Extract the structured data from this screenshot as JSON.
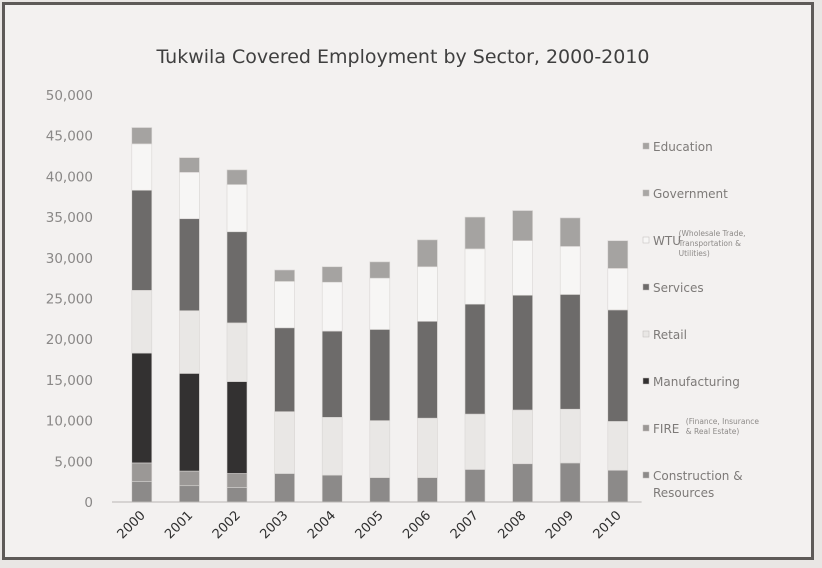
{
  "chart_data": {
    "type": "bar",
    "stacked": true,
    "title": "Tukwila Covered Employment by Sector, 2000-2010",
    "xlabel": "",
    "ylabel": "",
    "ylim": [
      0,
      50000
    ],
    "y_ticks": [
      "0",
      "5,000",
      "10,000",
      "15,000",
      "20,000",
      "25,000",
      "30,000",
      "35,000",
      "40,000",
      "45,000",
      "50,000"
    ],
    "categories": [
      "2000",
      "2001",
      "2002",
      "2003",
      "2004",
      "2005",
      "2006",
      "2007",
      "2008",
      "2009",
      "2010"
    ],
    "grid": false,
    "legend_position": "right",
    "series": [
      {
        "name": "Construction & Resources",
        "color": "#8c8a89",
        "values": [
          2500,
          2000,
          1800,
          3500,
          3300,
          3000,
          3000,
          4000,
          4700,
          4800,
          3900
        ]
      },
      {
        "name": "FIRE",
        "sublabel": "(Finance, Insurance & Real Estate)",
        "color": "#9b9896",
        "values": [
          2300,
          1800,
          1700,
          0,
          0,
          0,
          0,
          0,
          0,
          0,
          0
        ]
      },
      {
        "name": "Manufacturing",
        "color": "#333131",
        "values": [
          13500,
          12000,
          11300,
          0,
          0,
          0,
          0,
          0,
          0,
          0,
          0
        ]
      },
      {
        "name": "Retail",
        "color": "#e9e7e5",
        "values": [
          7700,
          7700,
          7200,
          7600,
          7100,
          7000,
          7300,
          6800,
          6600,
          6600,
          6000
        ]
      },
      {
        "name": "Services",
        "color": "#6d6b6a",
        "values": [
          12300,
          11300,
          11200,
          10300,
          10600,
          11200,
          11900,
          13500,
          14100,
          14100,
          13700
        ]
      },
      {
        "name": "WTU",
        "sublabel": "(Wholesale Trade, Transportation & Utilities)",
        "color": "#f7f6f5",
        "values": [
          5700,
          5700,
          5800,
          5700,
          6000,
          6300,
          6700,
          6800,
          6700,
          5900,
          5100
        ]
      },
      {
        "name": "Government",
        "color": "#a9a7a5",
        "values": [
          0,
          0,
          0,
          0,
          0,
          0,
          0,
          0,
          0,
          0,
          0
        ]
      },
      {
        "name": "Education",
        "color": "#a5a3a1",
        "values": [
          2000,
          1800,
          1800,
          1400,
          1900,
          2000,
          3300,
          3900,
          3700,
          3500,
          3400
        ]
      }
    ]
  }
}
